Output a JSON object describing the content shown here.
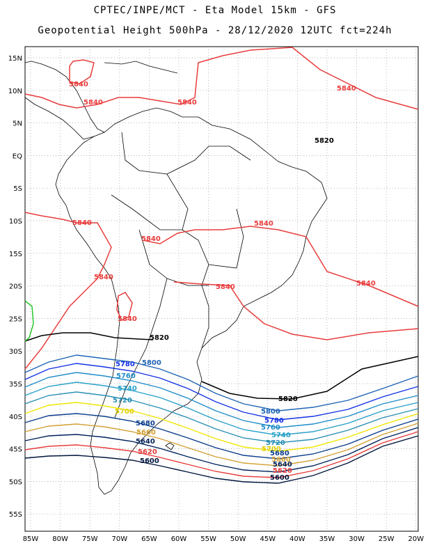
{
  "header": {
    "line1": "CPTEC/INPE/MCT -  Eta Model 15km - GFS",
    "line2": "Geopotential Height 500hPa - 28/12/2020 12UTC fct=224h"
  },
  "axes": {
    "lat_labels": [
      "15N",
      "10N",
      "5N",
      "EQ",
      "5S",
      "10S",
      "15S",
      "20S",
      "25S",
      "30S",
      "35S",
      "40S",
      "45S",
      "50S",
      "55S"
    ],
    "lon_labels": [
      "85W",
      "80W",
      "75W",
      "70W",
      "65W",
      "60W",
      "55W",
      "50W",
      "45W",
      "40W",
      "35W",
      "30W",
      "25W",
      "20W"
    ]
  },
  "contours": {
    "c5840": {
      "value": "5840",
      "color": "#e83c3c",
      "labels": [
        "5840",
        "5840",
        "5840",
        "5840",
        "5840",
        "5840",
        "5840",
        "5840",
        "5840",
        "5840",
        "5840"
      ]
    },
    "c5820": {
      "value": "5820",
      "color": "#000000",
      "labels": [
        "5820",
        "5820",
        "5820"
      ]
    },
    "c5800": {
      "value": "5800",
      "color": "#1e64b4",
      "labels": [
        "5800",
        "5800"
      ]
    },
    "c5780": {
      "value": "5780",
      "color": "#1432e6",
      "labels": [
        "5780",
        "5780"
      ]
    },
    "c5760": {
      "value": "5760",
      "color": "#1e8cc8",
      "labels": [
        "5760",
        "5760"
      ]
    },
    "c5740": {
      "value": "5740",
      "color": "#28a0c8",
      "labels": [
        "5740",
        "5740"
      ]
    },
    "c5720": {
      "value": "5720",
      "color": "#2890b4",
      "labels": [
        "5720",
        "5720"
      ]
    },
    "c5700": {
      "value": "5700",
      "color": "#f0e600",
      "labels": [
        "5700",
        "5700"
      ]
    },
    "c5680": {
      "value": "5680",
      "color": "#0a3c8c",
      "labels": [
        "5680",
        "5680"
      ]
    },
    "c5660": {
      "value": "5660",
      "color": "#d2a032",
      "labels": [
        "5660",
        "5660"
      ]
    },
    "c5640": {
      "value": "5640",
      "color": "#00205a",
      "labels": [
        "5640",
        "5640"
      ]
    },
    "c5620": {
      "value": "5620",
      "color": "#e83c3c",
      "labels": [
        "5620",
        "5620"
      ]
    },
    "c5600": {
      "value": "5600",
      "color": "#00143c",
      "labels": [
        "5600",
        "5600"
      ]
    }
  }
}
